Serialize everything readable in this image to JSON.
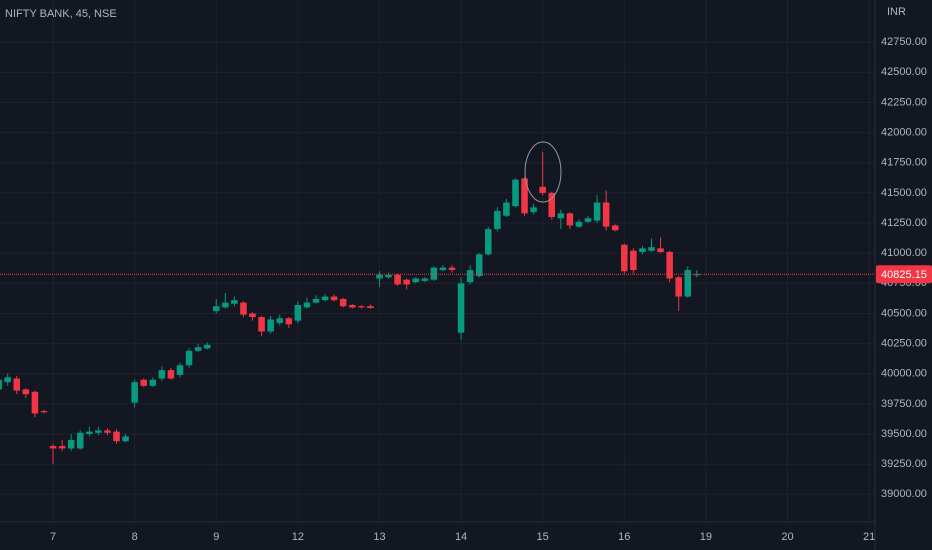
{
  "chart_data": {
    "type": "candlestick",
    "title": "NIFTY BANK, 45, NSE",
    "currency": "INR",
    "up_color": "#089981",
    "down_color": "#f23645",
    "grid": true,
    "x": [
      0,
      1,
      2,
      3,
      4,
      5,
      6,
      7,
      8,
      9,
      10,
      11,
      12,
      13,
      14,
      15,
      16,
      17,
      18,
      19,
      20,
      21,
      22,
      23,
      24,
      25,
      26,
      27,
      28,
      29,
      30,
      31,
      32,
      33,
      34,
      35,
      36,
      37,
      38,
      39,
      40,
      41,
      42,
      43,
      44,
      45,
      46,
      47,
      48,
      49,
      50,
      51,
      52,
      53,
      54,
      55,
      56,
      57,
      58,
      59,
      60,
      61,
      62,
      63,
      64,
      65,
      66,
      67,
      68,
      69,
      70,
      71,
      72,
      73,
      74,
      75,
      76,
      77
    ],
    "open": [
      39870,
      39930,
      39960,
      39870,
      39850,
      39690,
      39400,
      39400,
      39380,
      39380,
      39500,
      39510,
      39530,
      39520,
      39440,
      39760,
      39950,
      39900,
      39960,
      40030,
      39990,
      40070,
      40190,
      40210,
      40520,
      40550,
      40580,
      40590,
      40500,
      40470,
      40350,
      40420,
      40460,
      40440,
      40550,
      40590,
      40610,
      40640,
      40620,
      40570,
      40560,
      40560,
      40790,
      40800,
      40820,
      40780,
      40760,
      40770,
      40780,
      40860,
      40880,
      40340,
      40760,
      40810,
      40990,
      41200,
      41310,
      41390,
      41620,
      41340,
      41550,
      41500,
      41290,
      41330,
      41220,
      41260,
      41270,
      41420,
      41230,
      41070,
      41020,
      41010,
      41020,
      41040,
      41010,
      40800,
      40640,
      40820
    ],
    "high": [
      39980,
      40000,
      39980,
      39880,
      39860,
      39700,
      39420,
      39450,
      39500,
      39530,
      39560,
      39560,
      39550,
      39540,
      39500,
      39950,
      39960,
      39970,
      40060,
      40050,
      40090,
      40210,
      40250,
      40260,
      40620,
      40670,
      40640,
      40600,
      40510,
      40480,
      40480,
      40490,
      40470,
      40600,
      40630,
      40650,
      40660,
      40660,
      40630,
      40580,
      40570,
      40575,
      40850,
      40840,
      40830,
      40790,
      40800,
      40800,
      40890,
      40900,
      40900,
      40800,
      40900,
      41000,
      41220,
      41380,
      41450,
      41620,
      41630,
      41410,
      41840,
      41510,
      41360,
      41340,
      41280,
      41310,
      41480,
      41520,
      41240,
      41080,
      41040,
      41060,
      41120,
      41130,
      41020,
      40810,
      40890,
      40860
    ],
    "low": [
      39840,
      39900,
      39830,
      39800,
      39640,
      39670,
      39250,
      39360,
      39360,
      39370,
      39480,
      39490,
      39490,
      39420,
      39430,
      39720,
      39890,
      39890,
      39940,
      39950,
      39970,
      40050,
      40180,
      40200,
      40500,
      40540,
      40560,
      40470,
      40440,
      40310,
      40330,
      40400,
      40380,
      40420,
      40540,
      40580,
      40600,
      40600,
      40550,
      40540,
      40540,
      40540,
      40720,
      40790,
      40730,
      40700,
      40750,
      40760,
      40770,
      40850,
      40840,
      40280,
      40740,
      40800,
      40980,
      41180,
      41300,
      41380,
      41310,
      41320,
      41480,
      41280,
      41200,
      41200,
      41210,
      41250,
      41250,
      41190,
      41180,
      40830,
      40830,
      40990,
      41010,
      41000,
      40760,
      40520,
      40630,
      40800
    ],
    "close": [
      39950,
      39970,
      39860,
      39830,
      39670,
      39680,
      39380,
      39380,
      39450,
      39510,
      39520,
      39530,
      39510,
      39440,
      39480,
      39930,
      39900,
      39950,
      40030,
      39960,
      40070,
      40190,
      40220,
      40240,
      40560,
      40590,
      40610,
      40490,
      40470,
      40350,
      40450,
      40460,
      40410,
      40570,
      40590,
      40620,
      40640,
      40610,
      40560,
      40550,
      40550,
      40545,
      40820,
      40820,
      40740,
      40740,
      40790,
      40790,
      40880,
      40880,
      40860,
      40750,
      40860,
      40990,
      41200,
      41350,
      41420,
      41610,
      41330,
      41380,
      41500,
      41300,
      41330,
      41230,
      41260,
      41290,
      41420,
      41220,
      41190,
      40850,
      40860,
      41040,
      41050,
      41010,
      40790,
      40640,
      40860,
      40825.15
    ],
    "last_price": {
      "value": 40825.15,
      "label": "40825.15"
    },
    "xlim": [
      0.15,
      96.65
    ],
    "xticks": [
      {
        "value": 6,
        "label": "7"
      },
      {
        "value": 15,
        "label": "8"
      },
      {
        "value": 24,
        "label": "9"
      },
      {
        "value": 33,
        "label": "12"
      },
      {
        "value": 42,
        "label": "13"
      },
      {
        "value": 51,
        "label": "14"
      },
      {
        "value": 60,
        "label": "15"
      },
      {
        "value": 69,
        "label": "16"
      },
      {
        "value": 78,
        "label": "19"
      },
      {
        "value": 87,
        "label": "20"
      },
      {
        "value": 96,
        "label": "21"
      }
    ],
    "ylim": [
      38770,
      43100
    ],
    "yticks": [
      {
        "value": 39000,
        "label": "39000.00"
      },
      {
        "value": 39250,
        "label": "39250.00"
      },
      {
        "value": 39500,
        "label": "39500.00"
      },
      {
        "value": 39750,
        "label": "39750.00"
      },
      {
        "value": 40000,
        "label": "40000.00"
      },
      {
        "value": 40250,
        "label": "40250.00"
      },
      {
        "value": 40500,
        "label": "40500.00"
      },
      {
        "value": 40750,
        "label": "40750.00"
      },
      {
        "value": 41000,
        "label": "41000.00"
      },
      {
        "value": 41250,
        "label": "41250.00"
      },
      {
        "value": 41500,
        "label": "41500.00"
      },
      {
        "value": 41750,
        "label": "41750.00"
      },
      {
        "value": 42000,
        "label": "42000.00"
      },
      {
        "value": 42250,
        "label": "42250.00"
      },
      {
        "value": 42500,
        "label": "42500.00"
      },
      {
        "value": 42750,
        "label": "42750.00"
      }
    ]
  }
}
